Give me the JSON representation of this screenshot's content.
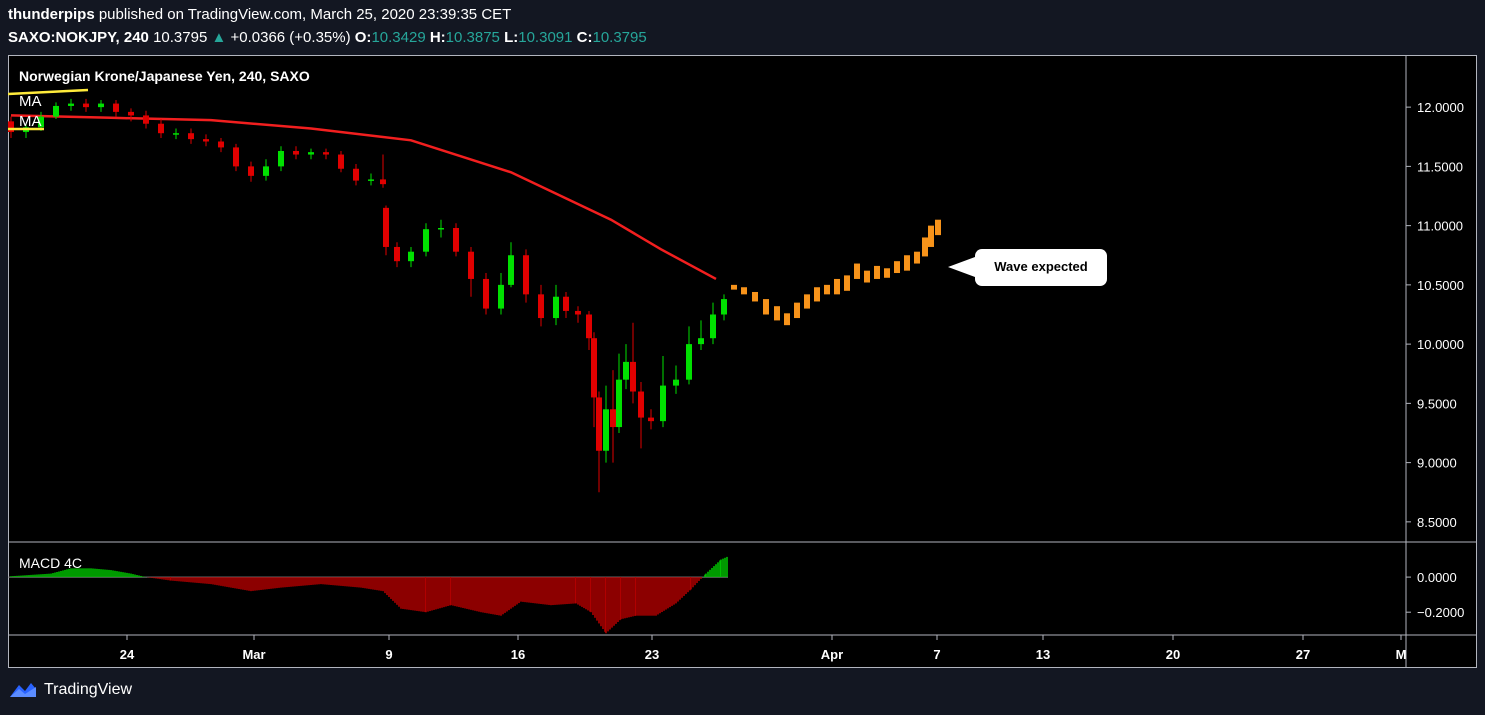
{
  "header": {
    "author": "thunderpips",
    "published_text": "published on TradingView.com, March 25, 2020 23:39:35 CET",
    "symbol": "SAXO:NOKJPY, 240",
    "last": "10.3795",
    "change": "+0.0366 (+0.35%)",
    "o_label": "O:",
    "o_value": "10.3429",
    "h_label": "H:",
    "h_value": "10.3875",
    "l_label": "L:",
    "l_value": "10.3091",
    "c_label": "C:",
    "c_value": "10.3795"
  },
  "footer": {
    "brand": "TradingView"
  },
  "chart_data": [
    {
      "type": "candlestick",
      "title": "Norwegian Krone/Japanese Yen, 240, SAXO",
      "legend": [
        "MA",
        "MA"
      ],
      "annotation": "Wave expected",
      "ylim": [
        8.33,
        12.44
      ],
      "y_ticks": [
        "12.0000",
        "11.5000",
        "11.0000",
        "10.5000",
        "10.0000",
        "9.5000",
        "9.0000",
        "8.5000"
      ],
      "x_ticks": [
        "24",
        "Mar",
        "9",
        "16",
        "23",
        "Apr",
        "7",
        "13",
        "20",
        "27",
        "M"
      ],
      "moving_average": [
        [
          0,
          11.93
        ],
        [
          100,
          11.91
        ],
        [
          200,
          11.89
        ],
        [
          300,
          11.82
        ],
        [
          400,
          11.72
        ],
        [
          500,
          11.45
        ],
        [
          600,
          11.05
        ],
        [
          650,
          10.8
        ],
        [
          705,
          10.55
        ]
      ],
      "candles": [
        [
          0,
          11.88,
          11.79,
          11.92,
          11.74
        ],
        [
          15,
          11.79,
          11.83,
          11.86,
          11.74
        ],
        [
          30,
          11.83,
          11.92,
          11.96,
          11.8
        ],
        [
          45,
          11.92,
          12.01,
          12.04,
          11.9
        ],
        [
          60,
          12.01,
          12.03,
          12.07,
          11.97
        ],
        [
          75,
          12.03,
          12.0,
          12.07,
          11.96
        ],
        [
          90,
          12.0,
          12.03,
          12.06,
          11.96
        ],
        [
          105,
          12.03,
          11.96,
          12.06,
          11.92
        ],
        [
          120,
          11.96,
          11.93,
          11.99,
          11.88
        ],
        [
          135,
          11.93,
          11.86,
          11.97,
          11.82
        ],
        [
          150,
          11.86,
          11.78,
          11.9,
          11.74
        ],
        [
          165,
          11.78,
          11.78,
          11.82,
          11.73
        ],
        [
          180,
          11.78,
          11.73,
          11.82,
          11.69
        ],
        [
          195,
          11.73,
          11.71,
          11.77,
          11.67
        ],
        [
          210,
          11.71,
          11.66,
          11.74,
          11.62
        ],
        [
          225,
          11.66,
          11.5,
          11.69,
          11.46
        ],
        [
          240,
          11.5,
          11.42,
          11.54,
          11.37
        ],
        [
          255,
          11.42,
          11.5,
          11.56,
          11.38
        ],
        [
          270,
          11.5,
          11.63,
          11.67,
          11.46
        ],
        [
          285,
          11.63,
          11.6,
          11.67,
          11.56
        ],
        [
          300,
          11.6,
          11.62,
          11.65,
          11.56
        ],
        [
          315,
          11.62,
          11.6,
          11.65,
          11.56
        ],
        [
          330,
          11.6,
          11.48,
          11.63,
          11.45
        ],
        [
          345,
          11.48,
          11.38,
          11.52,
          11.34
        ],
        [
          360,
          11.38,
          11.39,
          11.44,
          11.34
        ],
        [
          372,
          11.39,
          11.35,
          11.6,
          11.32
        ],
        [
          375,
          11.15,
          10.82,
          11.17,
          10.75
        ],
        [
          386,
          10.82,
          10.7,
          10.86,
          10.65
        ],
        [
          400,
          10.7,
          10.78,
          10.82,
          10.65
        ],
        [
          415,
          10.78,
          10.97,
          11.02,
          10.74
        ],
        [
          430,
          10.97,
          10.98,
          11.05,
          10.9
        ],
        [
          445,
          10.98,
          10.78,
          11.02,
          10.74
        ],
        [
          460,
          10.78,
          10.55,
          10.82,
          10.4
        ],
        [
          475,
          10.55,
          10.3,
          10.6,
          10.25
        ],
        [
          490,
          10.3,
          10.5,
          10.6,
          10.25
        ],
        [
          500,
          10.5,
          10.75,
          10.86,
          10.48
        ],
        [
          515,
          10.75,
          10.42,
          10.8,
          10.35
        ],
        [
          530,
          10.42,
          10.22,
          10.5,
          10.15
        ],
        [
          545,
          10.22,
          10.4,
          10.5,
          10.16
        ],
        [
          555,
          10.4,
          10.28,
          10.44,
          10.22
        ],
        [
          567,
          10.28,
          10.25,
          10.32,
          10.18
        ],
        [
          578,
          10.25,
          10.05,
          10.28,
          9.95
        ],
        [
          583,
          10.05,
          9.55,
          10.1,
          9.3
        ],
        [
          588,
          9.55,
          9.1,
          9.6,
          8.75
        ],
        [
          595,
          9.1,
          9.45,
          9.65,
          9.0
        ],
        [
          602,
          9.45,
          9.3,
          9.78,
          9.0
        ],
        [
          608,
          9.3,
          9.7,
          9.92,
          9.25
        ],
        [
          615,
          9.7,
          9.85,
          10.0,
          9.62
        ],
        [
          622,
          9.85,
          9.6,
          10.18,
          9.5
        ],
        [
          630,
          9.6,
          9.38,
          9.68,
          9.12
        ],
        [
          640,
          9.38,
          9.35,
          9.45,
          9.28
        ],
        [
          652,
          9.35,
          9.65,
          9.9,
          9.3
        ],
        [
          665,
          9.65,
          9.7,
          9.82,
          9.58
        ],
        [
          678,
          9.7,
          10.0,
          10.15,
          9.66
        ],
        [
          690,
          10.0,
          10.05,
          10.2,
          9.95
        ],
        [
          702,
          10.05,
          10.25,
          10.35,
          10.0
        ],
        [
          713,
          10.25,
          10.38,
          10.42,
          10.2
        ]
      ],
      "projection": [
        [
          723,
          10.5,
          10.46
        ],
        [
          733,
          10.48,
          10.42
        ],
        [
          744,
          10.44,
          10.36
        ],
        [
          755,
          10.38,
          10.25
        ],
        [
          766,
          10.32,
          10.2
        ],
        [
          776,
          10.26,
          10.16
        ],
        [
          786,
          10.35,
          10.22
        ],
        [
          796,
          10.42,
          10.3
        ],
        [
          806,
          10.48,
          10.36
        ],
        [
          816,
          10.5,
          10.42
        ],
        [
          826,
          10.55,
          10.42
        ],
        [
          836,
          10.58,
          10.45
        ],
        [
          846,
          10.68,
          10.55
        ],
        [
          856,
          10.62,
          10.52
        ],
        [
          866,
          10.66,
          10.55
        ],
        [
          876,
          10.64,
          10.56
        ],
        [
          886,
          10.7,
          10.6
        ],
        [
          896,
          10.75,
          10.62
        ],
        [
          906,
          10.78,
          10.68
        ],
        [
          914,
          10.9,
          10.74
        ],
        [
          920,
          11.0,
          10.82
        ],
        [
          927,
          11.05,
          10.92
        ]
      ]
    },
    {
      "type": "bar",
      "title": "MACD 4C",
      "ylim": [
        -0.33,
        0.2
      ],
      "y_ticks": [
        "0.0000",
        "−0.2000"
      ],
      "histogram": [
        [
          0,
          0.005
        ],
        [
          40,
          0.02
        ],
        [
          60,
          0.05
        ],
        [
          80,
          0.05
        ],
        [
          100,
          0.04
        ],
        [
          120,
          0.02
        ],
        [
          135,
          0.0
        ],
        [
          160,
          -0.02
        ],
        [
          200,
          -0.04
        ],
        [
          240,
          -0.08
        ],
        [
          270,
          -0.06
        ],
        [
          310,
          -0.04
        ],
        [
          350,
          -0.06
        ],
        [
          372,
          -0.08
        ],
        [
          390,
          -0.18
        ],
        [
          415,
          -0.2
        ],
        [
          440,
          -0.16
        ],
        [
          470,
          -0.2
        ],
        [
          490,
          -0.22
        ],
        [
          510,
          -0.14
        ],
        [
          540,
          -0.16
        ],
        [
          565,
          -0.15
        ],
        [
          580,
          -0.2
        ],
        [
          595,
          -0.32
        ],
        [
          610,
          -0.24
        ],
        [
          625,
          -0.22
        ],
        [
          645,
          -0.22
        ],
        [
          665,
          -0.15
        ],
        [
          680,
          -0.07
        ],
        [
          695,
          0.02
        ],
        [
          710,
          0.1
        ],
        [
          718,
          0.12
        ]
      ]
    }
  ]
}
